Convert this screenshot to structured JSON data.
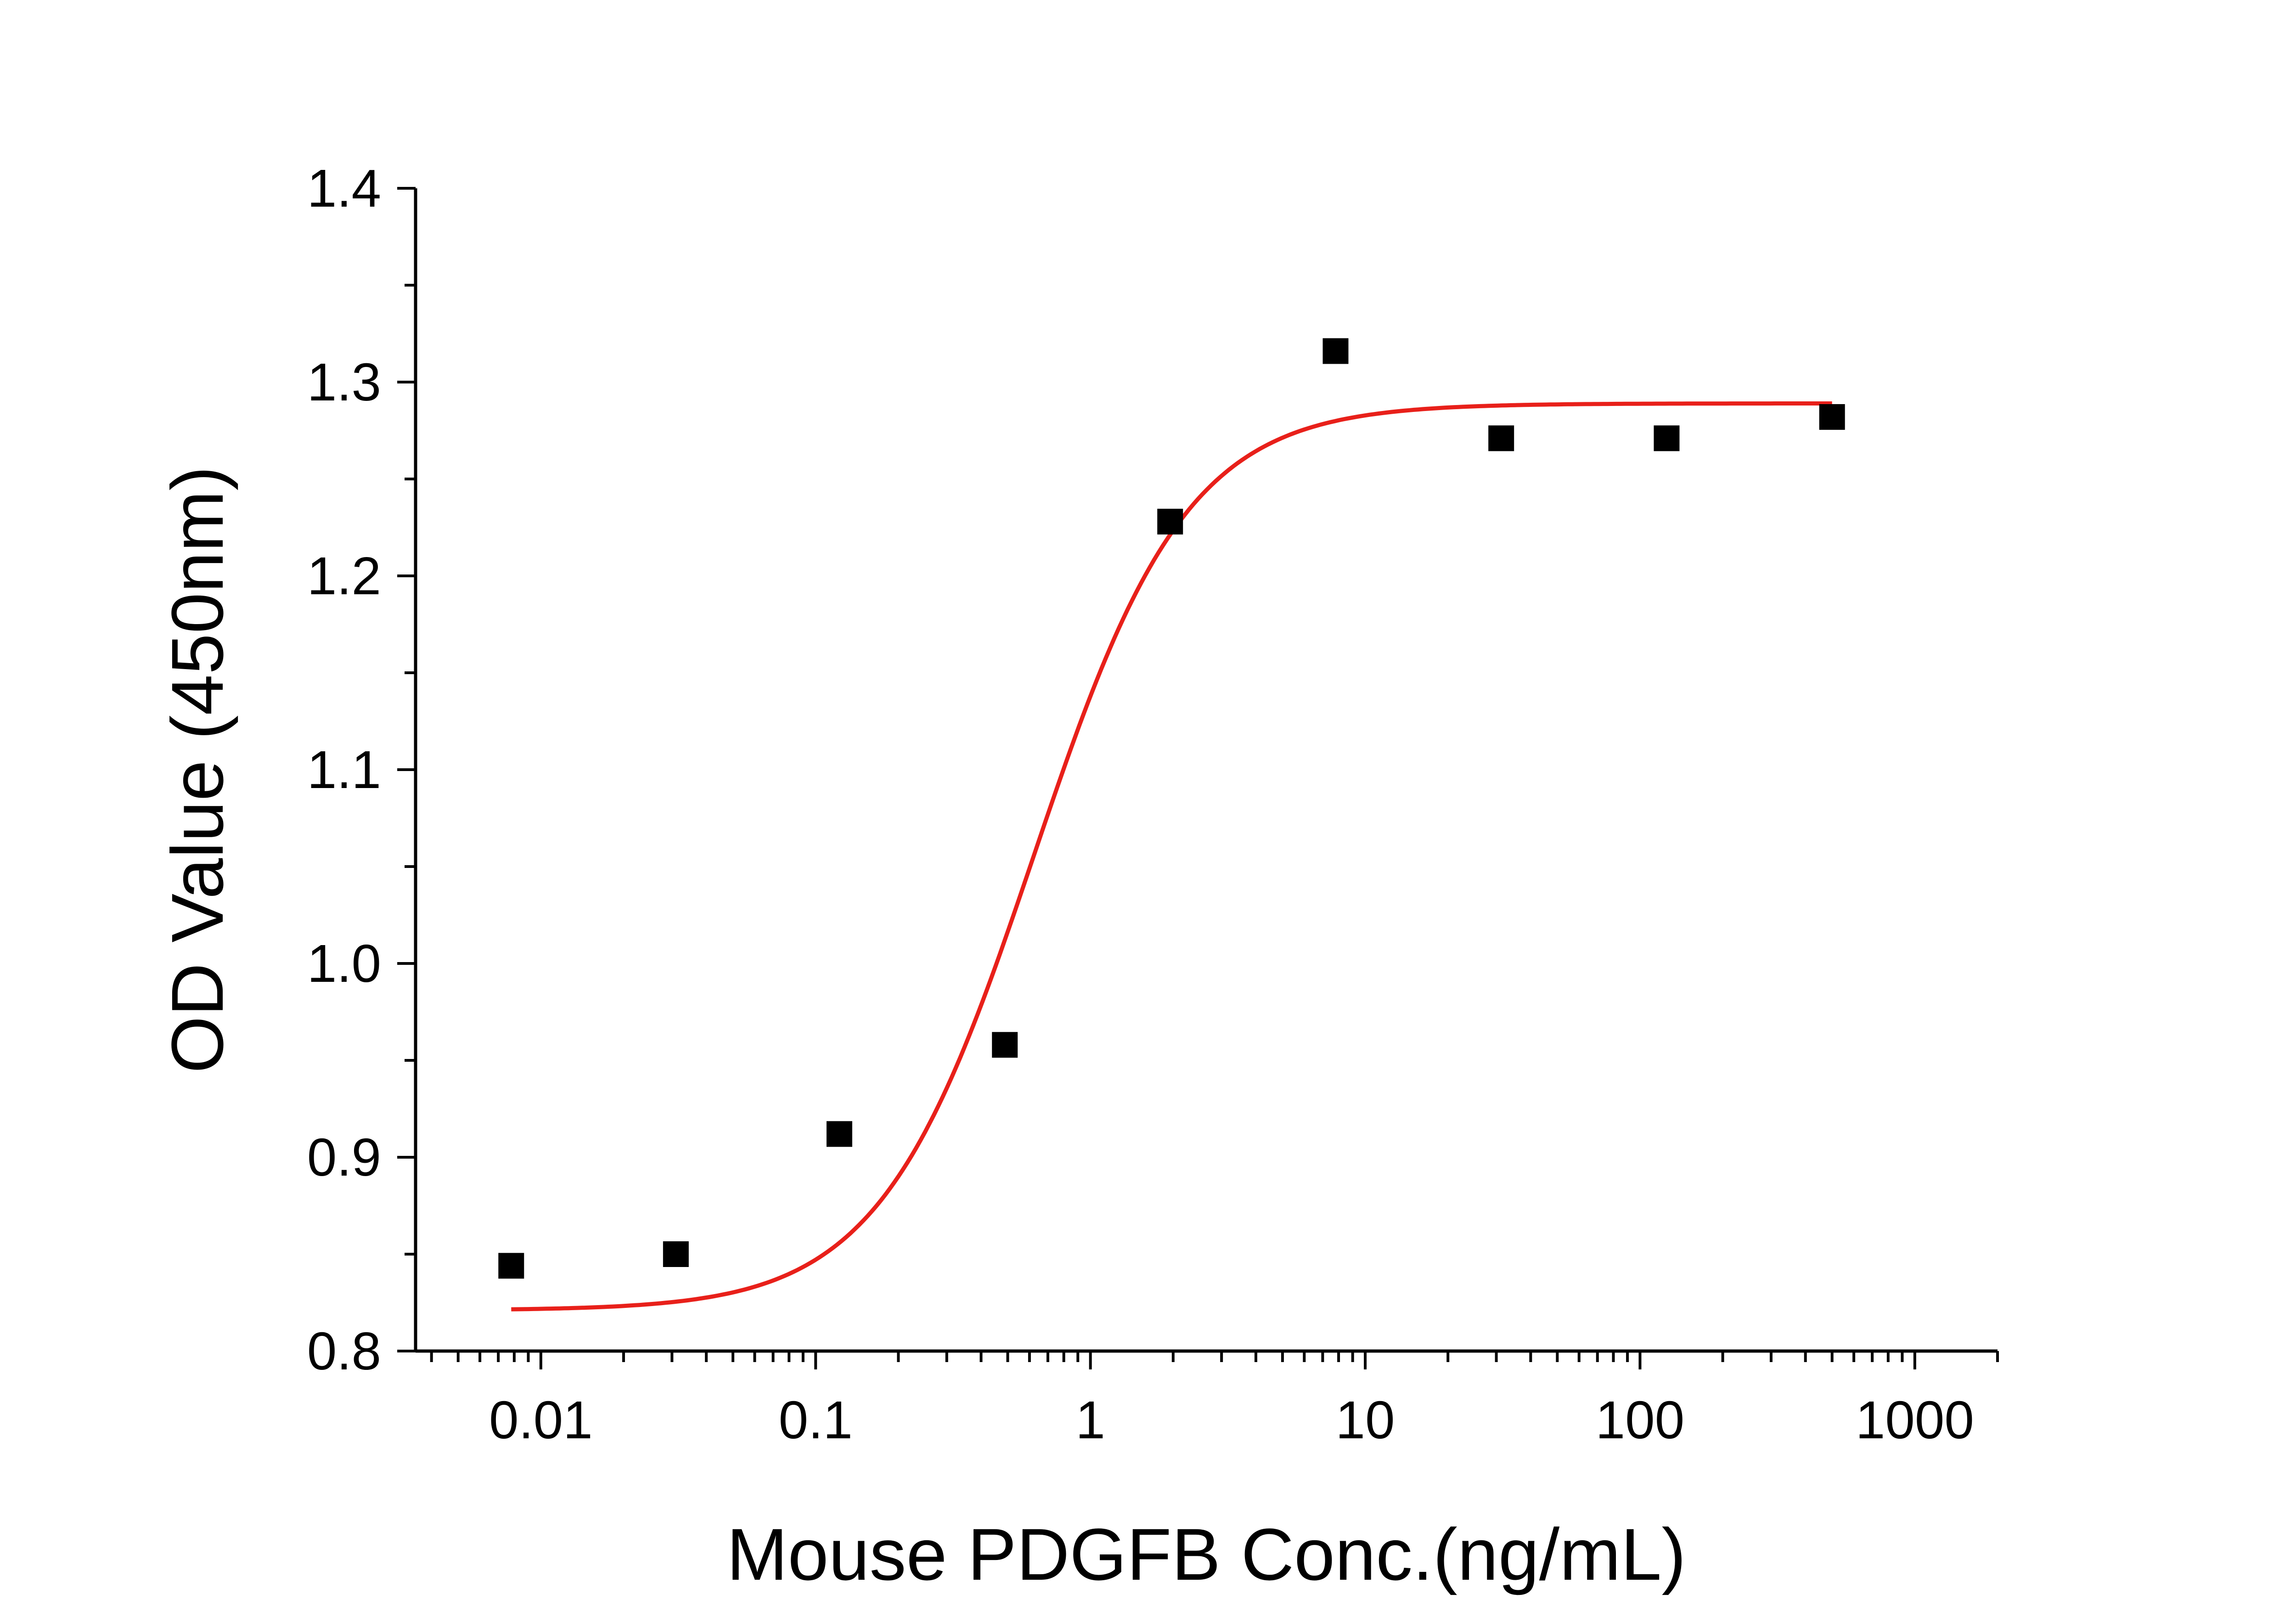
{
  "chart_data": {
    "type": "scatter",
    "title": "",
    "xlabel": "Mouse PDGFB Conc.(ng/mL)",
    "ylabel": "OD Value (450nm)",
    "x_scale": "log",
    "xlim": [
      0.0035,
      2000
    ],
    "ylim": [
      0.8,
      1.4
    ],
    "x_ticks": [
      0.01,
      0.1,
      1,
      10,
      100,
      1000
    ],
    "x_tick_labels": [
      "0.01",
      "0.1",
      "1",
      "10",
      "100",
      "1000"
    ],
    "y_ticks": [
      0.8,
      0.9,
      1.0,
      1.1,
      1.2,
      1.3,
      1.4
    ],
    "y_tick_labels": [
      "0.8",
      "0.9",
      "1.0",
      "1.1",
      "1.2",
      "1.3",
      "1.4"
    ],
    "grid": false,
    "series": [
      {
        "kind": "points",
        "marker": "square",
        "color": "#000000",
        "x": [
          0.0078,
          0.031,
          0.122,
          0.488,
          1.95,
          7.8,
          31.25,
          125,
          500
        ],
        "y": [
          0.844,
          0.85,
          0.912,
          0.958,
          1.228,
          1.316,
          1.271,
          1.271,
          1.282
        ]
      },
      {
        "kind": "fit",
        "color": "#e8201a",
        "model": "4PL",
        "bottom": 0.821,
        "top": 1.289,
        "ec50": 0.62,
        "hill": 1.55,
        "x_range": [
          0.0078,
          500
        ]
      }
    ]
  }
}
